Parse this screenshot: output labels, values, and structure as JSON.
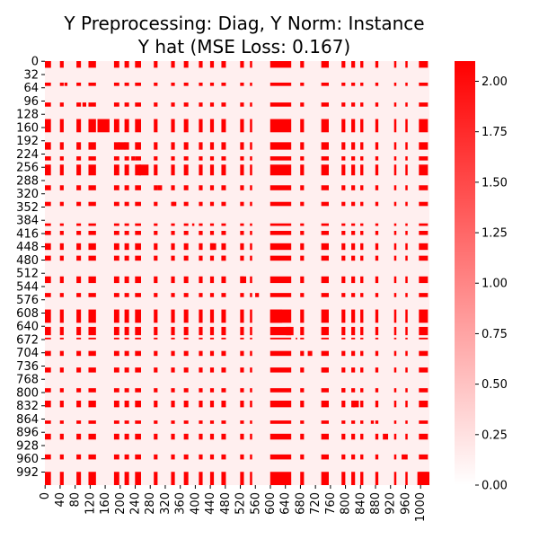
{
  "chart_data": {
    "type": "heatmap",
    "title": "Y Preprocessing: Diag, Y Norm: Instance",
    "subtitle": "Y hat (MSE Loss: 0.167)",
    "xlabel": "",
    "ylabel": "",
    "n_rows": 1024,
    "n_cols": 1024,
    "x_ticks": [
      "0",
      "40",
      "80",
      "120",
      "160",
      "200",
      "240",
      "280",
      "320",
      "360",
      "400",
      "440",
      "480",
      "520",
      "560",
      "600",
      "640",
      "680",
      "720",
      "760",
      "800",
      "840",
      "880",
      "920",
      "960",
      "1000"
    ],
    "y_ticks": [
      "0",
      "32",
      "64",
      "96",
      "128",
      "160",
      "192",
      "224",
      "256",
      "288",
      "320",
      "352",
      "384",
      "416",
      "448",
      "480",
      "512",
      "544",
      "576",
      "608",
      "640",
      "672",
      "704",
      "736",
      "768",
      "800",
      "832",
      "864",
      "896",
      "928",
      "960",
      "992"
    ],
    "x_tick_values": [
      0,
      40,
      80,
      120,
      160,
      200,
      240,
      280,
      320,
      360,
      400,
      440,
      480,
      520,
      560,
      600,
      640,
      680,
      720,
      760,
      800,
      840,
      880,
      920,
      960,
      1000
    ],
    "y_tick_values": [
      0,
      32,
      64,
      96,
      128,
      160,
      192,
      224,
      256,
      288,
      320,
      352,
      384,
      416,
      448,
      480,
      512,
      544,
      576,
      608,
      640,
      672,
      704,
      736,
      768,
      800,
      832,
      864,
      896,
      928,
      960,
      992
    ],
    "colorbar": {
      "min": 0.0,
      "max": 2.1,
      "ticks": [
        "0.00",
        "0.25",
        "0.50",
        "0.75",
        "1.00",
        "1.25",
        "1.50",
        "1.75",
        "2.00"
      ],
      "tick_values": [
        0.0,
        0.25,
        0.5,
        0.75,
        1.0,
        1.25,
        1.5,
        1.75,
        2.0
      ],
      "color_low": "#ffffff",
      "color_high": "#ff0000"
    },
    "background_value": 0.13,
    "high_value": 2.1,
    "hot_row_ranges": [
      [
        0,
        16
      ],
      [
        52,
        60
      ],
      [
        100,
        110
      ],
      [
        140,
        172
      ],
      [
        196,
        214
      ],
      [
        230,
        240
      ],
      [
        250,
        276
      ],
      [
        300,
        312
      ],
      [
        340,
        350
      ],
      [
        392,
        398
      ],
      [
        410,
        420
      ],
      [
        440,
        456
      ],
      [
        470,
        482
      ],
      [
        520,
        536
      ],
      [
        560,
        570
      ],
      [
        600,
        632
      ],
      [
        642,
        662
      ],
      [
        668,
        672
      ],
      [
        700,
        712
      ],
      [
        740,
        752
      ],
      [
        790,
        800
      ],
      [
        820,
        836
      ],
      [
        868,
        876
      ],
      [
        900,
        914
      ],
      [
        950,
        962
      ],
      [
        992,
        1024
      ]
    ],
    "hot_col_ranges": [
      [
        0,
        16
      ],
      [
        40,
        50
      ],
      [
        84,
        96
      ],
      [
        116,
        136
      ],
      [
        184,
        198
      ],
      [
        212,
        224
      ],
      [
        240,
        256
      ],
      [
        290,
        300
      ],
      [
        336,
        346
      ],
      [
        370,
        382
      ],
      [
        410,
        420
      ],
      [
        440,
        450
      ],
      [
        470,
        482
      ],
      [
        520,
        530
      ],
      [
        546,
        552
      ],
      [
        600,
        656
      ],
      [
        680,
        690
      ],
      [
        736,
        756
      ],
      [
        790,
        800
      ],
      [
        816,
        826
      ],
      [
        840,
        848
      ],
      [
        880,
        888
      ],
      [
        930,
        936
      ],
      [
        960,
        966
      ],
      [
        996,
        1020
      ]
    ]
  }
}
